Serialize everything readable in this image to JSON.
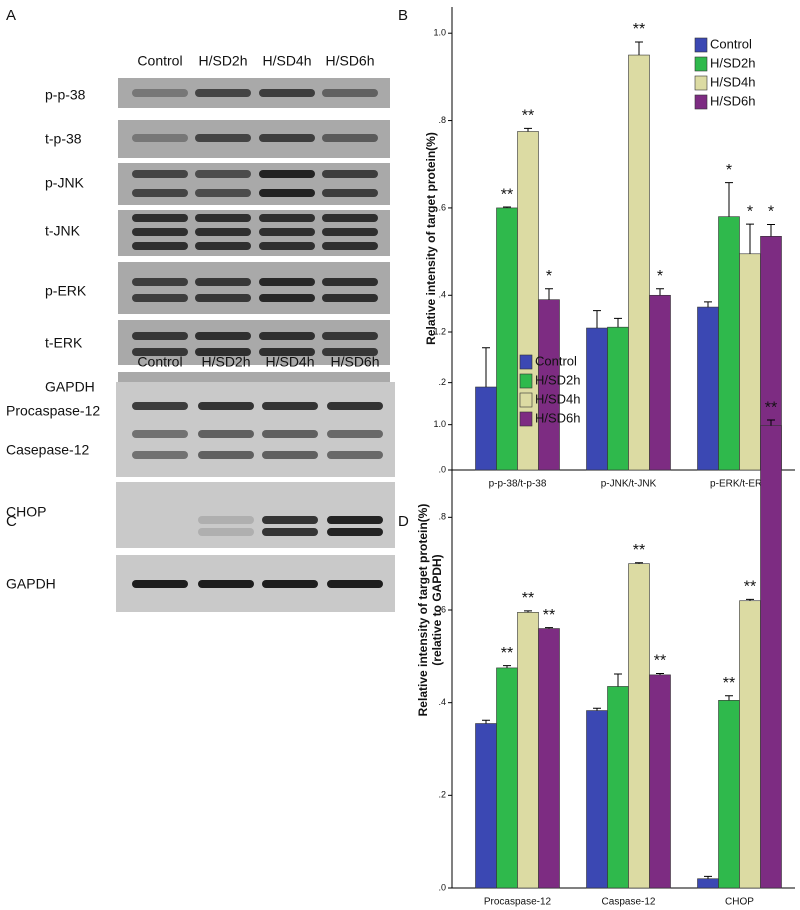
{
  "panel_labels": [
    "A",
    "B",
    "C",
    "D"
  ],
  "blots": [
    {
      "lanes": [
        "Control",
        "H/SD2h",
        "H/SD4h",
        "H/SD6h"
      ],
      "rows": [
        "p-p-38",
        "t-p-38",
        "p-JNK",
        "t-JNK",
        "p-ERK",
        "t-ERK",
        "GAPDH"
      ]
    },
    {
      "lanes": [
        "Control",
        "H/SD2h",
        "H/SD4h",
        "H/SD6h"
      ],
      "rows": [
        "Procaspase-12",
        "Casepase-12",
        "CHOP",
        "GAPDH"
      ]
    }
  ],
  "chart_data": [
    {
      "type": "bar",
      "y_label": [
        "Relative intensity of target protein(%)"
      ],
      "categories": [
        "p-p-38/t-p-38",
        "p-JNK/t-JNK",
        "p-ERK/t-ERK"
      ],
      "series": [
        {
          "name": "Control",
          "color": "#3b48b3",
          "values": [
            0.19,
            0.325,
            0.373
          ],
          "errors": [
            0.09,
            0.04,
            0.012
          ],
          "annotations": [
            null,
            null,
            null
          ]
        },
        {
          "name": "H/SD2h",
          "color": "#2fb94c",
          "values": [
            0.6,
            0.327,
            0.58
          ],
          "errors": [
            0.002,
            0.02,
            0.078
          ],
          "annotations": [
            "**",
            null,
            "*"
          ]
        },
        {
          "name": "H/SD4h",
          "color": "#dcdba3",
          "values": [
            0.775,
            0.95,
            0.495
          ],
          "errors": [
            0.007,
            0.03,
            0.068
          ],
          "annotations": [
            "**",
            "**",
            "*"
          ]
        },
        {
          "name": "H/SD6h",
          "color": "#7d2c82",
          "values": [
            0.39,
            0.4,
            0.535
          ],
          "errors": [
            0.025,
            0.015,
            0.027
          ],
          "annotations": [
            "*",
            "*",
            "*"
          ]
        }
      ],
      "ylim": [
        0,
        1.06
      ],
      "yticks": [
        {
          "value": 0,
          "label": ".0"
        },
        {
          "value": 0.2,
          "label": ".2"
        },
        {
          "value": 0.4,
          "label": ".4"
        },
        {
          "value": 0.6,
          "label": ".6"
        },
        {
          "value": 0.8,
          "label": ".8"
        },
        {
          "value": 1,
          "label": "1.0"
        }
      ],
      "legend": "upper right"
    },
    {
      "type": "bar",
      "y_label": [
        "Relative intensity of target protein(%)",
        "(relative to GAPDH)"
      ],
      "categories": [
        "Procaspase-12",
        "Caspase-12",
        "CHOP"
      ],
      "series": [
        {
          "name": "Control",
          "color": "#3b48b3",
          "values": [
            0.355,
            0.383,
            0.02
          ],
          "errors": [
            0.007,
            0.005,
            0.005
          ],
          "annotations": [
            null,
            null,
            null
          ]
        },
        {
          "name": "H/SD2h",
          "color": "#2fb94c",
          "values": [
            0.475,
            0.435,
            0.405
          ],
          "errors": [
            0.005,
            0.027,
            0.01
          ],
          "annotations": [
            "**",
            null,
            "**"
          ]
        },
        {
          "name": "H/SD4h",
          "color": "#dcdba3",
          "values": [
            0.595,
            0.7,
            0.62
          ],
          "errors": [
            0.003,
            0.002,
            0.003
          ],
          "annotations": [
            "**",
            "**",
            "**"
          ]
        },
        {
          "name": "H/SD6h",
          "color": "#7d2c82",
          "values": [
            0.56,
            0.46,
            0.998
          ],
          "errors": [
            0.002,
            0.003,
            0.012
          ],
          "annotations": [
            "**",
            "**",
            "**"
          ]
        }
      ],
      "ylim": [
        0,
        1.2
      ],
      "yticks": [
        {
          "value": 0,
          "label": ".0"
        },
        {
          "value": 0.2,
          "label": ".2"
        },
        {
          "value": 0.4,
          "label": ".4"
        },
        {
          "value": 0.6,
          "label": ".6"
        },
        {
          "value": 0.8,
          "label": ".8"
        },
        {
          "value": 1,
          "label": "1.0"
        },
        {
          "value": 1.2,
          "label": "1.2"
        }
      ],
      "legend": "upper left"
    }
  ]
}
